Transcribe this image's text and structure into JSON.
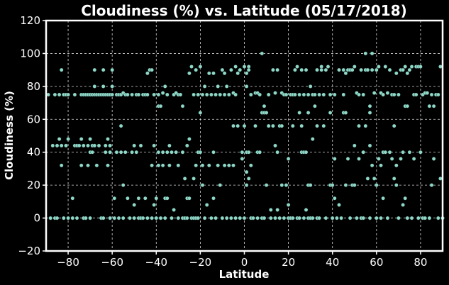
{
  "chart_data": {
    "type": "scatter",
    "title": "Cloudiness (%) vs. Latitude (05/17/2018)",
    "xlabel": "Latitude",
    "ylabel": "Cloudiness (%)",
    "xlim": [
      -90,
      90
    ],
    "ylim": [
      -20,
      120
    ],
    "xticks": [
      -80,
      -60,
      -40,
      -20,
      0,
      20,
      40,
      60,
      80
    ],
    "yticks": [
      -20,
      0,
      20,
      40,
      60,
      80,
      100,
      120
    ],
    "xtick_labels": [
      "−80",
      "−60",
      "−40",
      "−20",
      "0",
      "20",
      "40",
      "60",
      "80"
    ],
    "ytick_labels": [
      "−20",
      "0",
      "20",
      "40",
      "60",
      "80",
      "100",
      "120"
    ],
    "grid": true,
    "marker_color": "#8ed8c8",
    "background": "#000000",
    "points": [
      [
        -89,
        75
      ],
      [
        -88,
        0
      ],
      [
        -87,
        44
      ],
      [
        -86,
        75
      ],
      [
        -86,
        0
      ],
      [
        -85,
        44
      ],
      [
        -85,
        0
      ],
      [
        -84,
        48
      ],
      [
        -84,
        75
      ],
      [
        -83,
        44
      ],
      [
        -83,
        32
      ],
      [
        -83,
        90
      ],
      [
        -82,
        75
      ],
      [
        -82,
        0
      ],
      [
        -81,
        75
      ],
      [
        -81,
        44
      ],
      [
        -80,
        48
      ],
      [
        -80,
        75
      ],
      [
        -80,
        0
      ],
      [
        -78,
        0
      ],
      [
        -78,
        12
      ],
      [
        -77,
        75
      ],
      [
        -77,
        44
      ],
      [
        -76,
        0
      ],
      [
        -76,
        44
      ],
      [
        -75,
        44
      ],
      [
        -74,
        75
      ],
      [
        -74,
        48
      ],
      [
        -74,
        32
      ],
      [
        -73,
        75
      ],
      [
        -73,
        44
      ],
      [
        -73,
        0
      ],
      [
        -72,
        75
      ],
      [
        -72,
        0
      ],
      [
        -71,
        75
      ],
      [
        -71,
        32
      ],
      [
        -71,
        44
      ],
      [
        -70,
        75
      ],
      [
        -70,
        48
      ],
      [
        -70,
        40
      ],
      [
        -70,
        0
      ],
      [
        -69,
        75
      ],
      [
        -69,
        44
      ],
      [
        -69,
        40
      ],
      [
        -68,
        90
      ],
      [
        -68,
        80
      ],
      [
        -68,
        75
      ],
      [
        -68,
        44
      ],
      [
        -67,
        75
      ],
      [
        -67,
        32
      ],
      [
        -66,
        75
      ],
      [
        -66,
        44
      ],
      [
        -65,
        75
      ],
      [
        -65,
        0
      ],
      [
        -64,
        90
      ],
      [
        -64,
        80
      ],
      [
        -64,
        75
      ],
      [
        -64,
        0
      ],
      [
        -63,
        75
      ],
      [
        -63,
        44
      ],
      [
        -63,
        40
      ],
      [
        -62,
        75
      ],
      [
        -62,
        48
      ],
      [
        -62,
        32
      ],
      [
        -61,
        75
      ],
      [
        -61,
        44
      ],
      [
        -61,
        40
      ],
      [
        -61,
        0
      ],
      [
        -60,
        90
      ],
      [
        -60,
        80
      ],
      [
        -60,
        75
      ],
      [
        -59,
        12
      ],
      [
        -59,
        0
      ],
      [
        -58,
        75
      ],
      [
        -58,
        40
      ],
      [
        -57,
        75
      ],
      [
        -57,
        0
      ],
      [
        -56,
        56
      ],
      [
        -56,
        75
      ],
      [
        -56,
        40
      ],
      [
        -55,
        76
      ],
      [
        -55,
        20
      ],
      [
        -55,
        0
      ],
      [
        -54,
        75
      ],
      [
        -54,
        40
      ],
      [
        -53,
        75
      ],
      [
        -53,
        12
      ],
      [
        -52,
        0
      ],
      [
        -51,
        75
      ],
      [
        -51,
        40
      ],
      [
        -50,
        44
      ],
      [
        -50,
        8
      ],
      [
        -50,
        0
      ],
      [
        -49,
        75
      ],
      [
        -49,
        40
      ],
      [
        -48,
        75
      ],
      [
        -48,
        12
      ],
      [
        -48,
        0
      ],
      [
        -47,
        44
      ],
      [
        -47,
        0
      ],
      [
        -46,
        75
      ],
      [
        -46,
        0
      ],
      [
        -45,
        75
      ],
      [
        -45,
        12
      ],
      [
        -44,
        88
      ],
      [
        -44,
        75
      ],
      [
        -44,
        0
      ],
      [
        -43,
        90
      ],
      [
        -42,
        90
      ],
      [
        -42,
        32
      ],
      [
        -42,
        0
      ],
      [
        -41,
        75
      ],
      [
        -41,
        44
      ],
      [
        -41,
        8
      ],
      [
        -40,
        12
      ],
      [
        -40,
        0
      ],
      [
        -39,
        75
      ],
      [
        -39,
        68
      ],
      [
        -39,
        40
      ],
      [
        -39,
        32
      ],
      [
        -38,
        68
      ],
      [
        -38,
        0
      ],
      [
        -37,
        76
      ],
      [
        -37,
        40
      ],
      [
        -37,
        32
      ],
      [
        -36,
        80
      ],
      [
        -36,
        12
      ],
      [
        -36,
        0
      ],
      [
        -35,
        75
      ],
      [
        -35,
        40
      ],
      [
        -35,
        12
      ],
      [
        -34,
        44
      ],
      [
        -34,
        32
      ],
      [
        -33,
        40
      ],
      [
        -33,
        0
      ],
      [
        -32,
        75
      ],
      [
        -32,
        5
      ],
      [
        -31,
        76
      ],
      [
        -31,
        40
      ],
      [
        -30,
        75
      ],
      [
        -30,
        32
      ],
      [
        -30,
        0
      ],
      [
        -29,
        75
      ],
      [
        -28,
        68
      ],
      [
        -28,
        40
      ],
      [
        -28,
        0
      ],
      [
        -27,
        24
      ],
      [
        -27,
        0
      ],
      [
        -26,
        44
      ],
      [
        -26,
        12
      ],
      [
        -26,
        0
      ],
      [
        -25,
        88
      ],
      [
        -25,
        48
      ],
      [
        -25,
        12
      ],
      [
        -24,
        92
      ],
      [
        -24,
        0
      ],
      [
        -23,
        75
      ],
      [
        -23,
        24
      ],
      [
        -23,
        0
      ],
      [
        -22,
        90
      ],
      [
        -22,
        32
      ],
      [
        -22,
        0
      ],
      [
        -21,
        75
      ],
      [
        -21,
        40
      ],
      [
        -21,
        0
      ],
      [
        -20,
        92
      ],
      [
        -20,
        64
      ],
      [
        -20,
        40
      ],
      [
        -19,
        75
      ],
      [
        -19,
        32
      ],
      [
        -19,
        20
      ],
      [
        -18,
        80
      ],
      [
        -18,
        0
      ],
      [
        -17,
        75
      ],
      [
        -17,
        8
      ],
      [
        -16,
        88
      ],
      [
        -16,
        32
      ],
      [
        -15,
        75
      ],
      [
        -15,
        0
      ],
      [
        -14,
        88
      ],
      [
        -14,
        40
      ],
      [
        -14,
        12
      ],
      [
        -13,
        75
      ],
      [
        -13,
        0
      ],
      [
        -12,
        80
      ],
      [
        -12,
        32
      ],
      [
        -11,
        75
      ],
      [
        -11,
        20
      ],
      [
        -10,
        90
      ],
      [
        -10,
        0
      ],
      [
        -9,
        88
      ],
      [
        -9,
        75
      ],
      [
        -9,
        32
      ],
      [
        -8,
        80
      ],
      [
        -8,
        0
      ],
      [
        -7,
        75
      ],
      [
        -7,
        32
      ],
      [
        -6,
        90
      ],
      [
        -6,
        0
      ],
      [
        -5,
        76
      ],
      [
        -5,
        56
      ],
      [
        -5,
        32
      ],
      [
        -4,
        92
      ],
      [
        -4,
        75
      ],
      [
        -4,
        0
      ],
      [
        -3,
        88
      ],
      [
        -3,
        56
      ],
      [
        -2,
        90
      ],
      [
        -2,
        0
      ],
      [
        -1,
        40
      ],
      [
        -1,
        36
      ],
      [
        0,
        92
      ],
      [
        0,
        56
      ],
      [
        0,
        0
      ],
      [
        1,
        88
      ],
      [
        1,
        80
      ],
      [
        1,
        40
      ],
      [
        1,
        28
      ],
      [
        1,
        20
      ],
      [
        2,
        92
      ],
      [
        2,
        90
      ],
      [
        2,
        40
      ],
      [
        2,
        24
      ],
      [
        3,
        75
      ],
      [
        3,
        32
      ],
      [
        3,
        0
      ],
      [
        4,
        0
      ],
      [
        5,
        76
      ],
      [
        5,
        56
      ],
      [
        6,
        76
      ],
      [
        6,
        40
      ],
      [
        6,
        0
      ],
      [
        7,
        75
      ],
      [
        7,
        40
      ],
      [
        8,
        100
      ],
      [
        8,
        64
      ],
      [
        8,
        0
      ],
      [
        9,
        68
      ],
      [
        9,
        64
      ],
      [
        9,
        0
      ],
      [
        10,
        64
      ],
      [
        10,
        20
      ],
      [
        11,
        75
      ],
      [
        11,
        56
      ],
      [
        12,
        5
      ],
      [
        12,
        0
      ],
      [
        13,
        90
      ],
      [
        13,
        56
      ],
      [
        14,
        76
      ],
      [
        14,
        44
      ],
      [
        14,
        0
      ],
      [
        15,
        90
      ],
      [
        15,
        40
      ],
      [
        15,
        5
      ],
      [
        16,
        56
      ],
      [
        16,
        0
      ],
      [
        17,
        76
      ],
      [
        17,
        56
      ],
      [
        17,
        20
      ],
      [
        18,
        75
      ],
      [
        18,
        0
      ],
      [
        19,
        75
      ],
      [
        19,
        20
      ],
      [
        20,
        36
      ],
      [
        20,
        8
      ],
      [
        20,
        0
      ],
      [
        21,
        75
      ],
      [
        21,
        0
      ],
      [
        22,
        75
      ],
      [
        22,
        56
      ],
      [
        22,
        0
      ],
      [
        23,
        90
      ],
      [
        23,
        75
      ],
      [
        24,
        92
      ],
      [
        24,
        0
      ],
      [
        25,
        75
      ],
      [
        25,
        64
      ],
      [
        25,
        0
      ],
      [
        26,
        90
      ],
      [
        26,
        56
      ],
      [
        26,
        40
      ],
      [
        27,
        75
      ],
      [
        27,
        40
      ],
      [
        27,
        0
      ],
      [
        28,
        90
      ],
      [
        28,
        40
      ],
      [
        28,
        5
      ],
      [
        29,
        75
      ],
      [
        29,
        64
      ],
      [
        29,
        20
      ],
      [
        29,
        0
      ],
      [
        30,
        80
      ],
      [
        30,
        20
      ],
      [
        30,
        0
      ],
      [
        31,
        75
      ],
      [
        31,
        48
      ],
      [
        31,
        0
      ],
      [
        32,
        75
      ],
      [
        32,
        68
      ],
      [
        33,
        90
      ],
      [
        33,
        56
      ],
      [
        33,
        0
      ],
      [
        34,
        75
      ],
      [
        34,
        0
      ],
      [
        35,
        92
      ],
      [
        35,
        90
      ],
      [
        36,
        75
      ],
      [
        36,
        56
      ],
      [
        37,
        90
      ],
      [
        37,
        0
      ],
      [
        38,
        92
      ],
      [
        39,
        75
      ],
      [
        39,
        64
      ],
      [
        39,
        20
      ],
      [
        40,
        20
      ],
      [
        40,
        0
      ],
      [
        41,
        75
      ],
      [
        41,
        36
      ],
      [
        41,
        12
      ],
      [
        42,
        0
      ],
      [
        43,
        90
      ],
      [
        43,
        8
      ],
      [
        44,
        0
      ],
      [
        45,
        90
      ],
      [
        45,
        75
      ],
      [
        45,
        64
      ],
      [
        46,
        88
      ],
      [
        46,
        64
      ],
      [
        46,
        20
      ],
      [
        47,
        90
      ],
      [
        47,
        36
      ],
      [
        48,
        90
      ],
      [
        48,
        0
      ],
      [
        49,
        90
      ],
      [
        49,
        20
      ],
      [
        50,
        92
      ],
      [
        50,
        44
      ],
      [
        50,
        20
      ],
      [
        51,
        76
      ],
      [
        51,
        0
      ],
      [
        52,
        75
      ],
      [
        52,
        56
      ],
      [
        52,
        36
      ],
      [
        53,
        90
      ],
      [
        53,
        0
      ],
      [
        54,
        75
      ],
      [
        54,
        40
      ],
      [
        54,
        0
      ],
      [
        55,
        100
      ],
      [
        55,
        90
      ],
      [
        55,
        56
      ],
      [
        56,
        90
      ],
      [
        56,
        24
      ],
      [
        57,
        68
      ],
      [
        57,
        64
      ],
      [
        57,
        44
      ],
      [
        57,
        0
      ],
      [
        58,
        100
      ],
      [
        58,
        90
      ],
      [
        58,
        32
      ],
      [
        59,
        76
      ],
      [
        59,
        24
      ],
      [
        60,
        90
      ],
      [
        60,
        20
      ],
      [
        60,
        0
      ],
      [
        61,
        92
      ],
      [
        61,
        36
      ],
      [
        62,
        76
      ],
      [
        62,
        32
      ],
      [
        62,
        0
      ],
      [
        63,
        75
      ],
      [
        63,
        40
      ],
      [
        63,
        12
      ],
      [
        64,
        92
      ],
      [
        64,
        40
      ],
      [
        65,
        76
      ],
      [
        65,
        0
      ],
      [
        66,
        90
      ],
      [
        66,
        40
      ],
      [
        67,
        75
      ],
      [
        67,
        36
      ],
      [
        68,
        75
      ],
      [
        68,
        56
      ],
      [
        68,
        24
      ],
      [
        69,
        88
      ],
      [
        69,
        32
      ],
      [
        69,
        20
      ],
      [
        70,
        75
      ],
      [
        70,
        0
      ],
      [
        71,
        90
      ],
      [
        71,
        36
      ],
      [
        72,
        90
      ],
      [
        72,
        40
      ],
      [
        72,
        8
      ],
      [
        73,
        92
      ],
      [
        73,
        68
      ],
      [
        73,
        12
      ],
      [
        74,
        88
      ],
      [
        74,
        68
      ],
      [
        74,
        0
      ],
      [
        75,
        90
      ],
      [
        75,
        40
      ],
      [
        76,
        92
      ],
      [
        76,
        0
      ],
      [
        77,
        75
      ],
      [
        77,
        36
      ],
      [
        78,
        92
      ],
      [
        78,
        75
      ],
      [
        79,
        92
      ],
      [
        79,
        0
      ],
      [
        80,
        92
      ],
      [
        80,
        40
      ],
      [
        81,
        75
      ],
      [
        81,
        0
      ],
      [
        82,
        76
      ],
      [
        82,
        0
      ],
      [
        83,
        76
      ],
      [
        84,
        68
      ],
      [
        84,
        0
      ],
      [
        85,
        75
      ],
      [
        85,
        20
      ],
      [
        86,
        68
      ],
      [
        86,
        36
      ],
      [
        87,
        75
      ],
      [
        88,
        75
      ],
      [
        88,
        0
      ],
      [
        89,
        92
      ],
      [
        89,
        24
      ],
      [
        90,
        0
      ]
    ]
  }
}
